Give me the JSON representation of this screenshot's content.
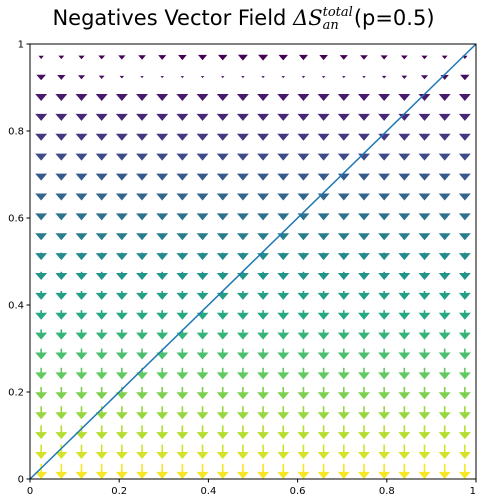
{
  "chart_data": {
    "type": "quiver",
    "title": {
      "prefix": "Negatives Vector Field ",
      "symbol": "ΔS",
      "superscript": "total",
      "subscript": "an",
      "suffix": "(p=0.5)"
    },
    "xlabel": "",
    "ylabel": "",
    "xlim": [
      0,
      1
    ],
    "ylim": [
      0,
      1
    ],
    "xticks": [
      "0",
      "0.2",
      "0.4",
      "0.6",
      "0.8",
      "1"
    ],
    "yticks": [
      "0",
      "0.2",
      "0.4",
      "0.6",
      "0.8",
      "1"
    ],
    "grid": false,
    "colormap": "viridis",
    "grid_points": {
      "x_start": 0.025,
      "x_stop": 0.975,
      "y_start": 0.01,
      "y_stop": 0.97,
      "count": 22
    },
    "vector_rule": "u = 0; v = -(density at y); density peaks at y = 0 and vanishes near y = 0.92",
    "reference_line": {
      "label": "y = x",
      "from": [
        0,
        0
      ],
      "to": [
        1,
        1
      ],
      "color": "#1f77b4"
    },
    "colors": {
      "axis": "#000000",
      "line": "#1f77b4"
    }
  }
}
